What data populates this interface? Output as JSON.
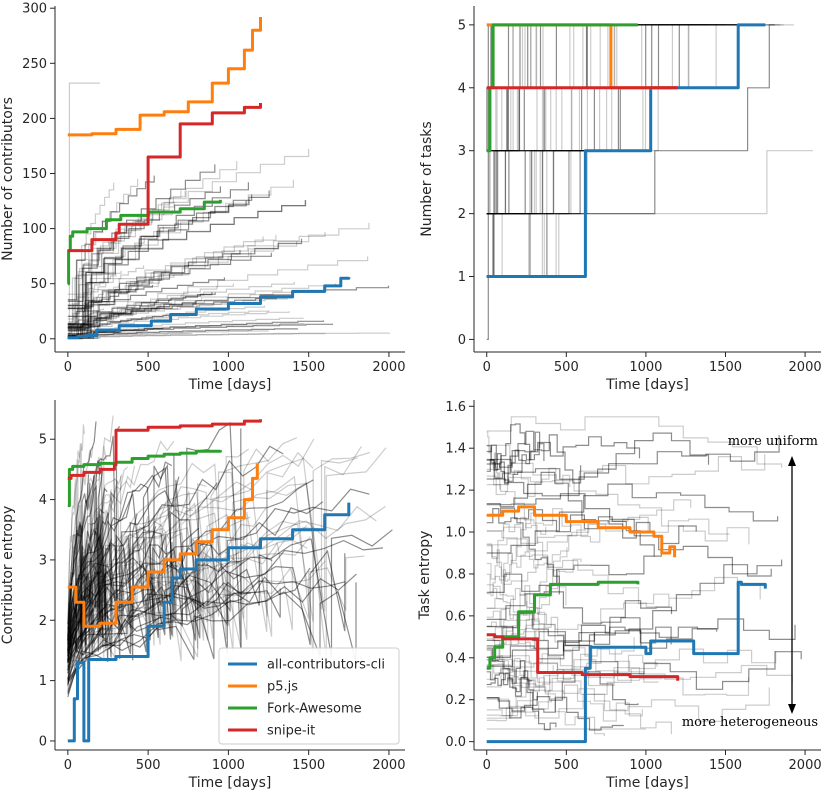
{
  "colors": {
    "all-contributors-cli": "#1f77b4",
    "p5.js": "#ff7f0e",
    "Fork-Awesome": "#2ca02c",
    "snipe-it": "#d62728",
    "background_lines": "#000000"
  },
  "legend": {
    "entries": [
      "all-contributors-cli",
      "p5.js",
      "Fork-Awesome",
      "snipe-it"
    ],
    "placement": "lower-right of contributor entropy panel"
  },
  "chart_data": [
    {
      "id": "contributors",
      "type": "line",
      "xlabel": "Time [days]",
      "ylabel": "Number of contributors",
      "xlim": [
        -80,
        2100
      ],
      "ylim": [
        -12,
        302
      ],
      "xticks": [
        0,
        500,
        1000,
        1500,
        2000
      ],
      "yticks": [
        0,
        50,
        100,
        150,
        200,
        250,
        300
      ],
      "grid": false,
      "series": [
        {
          "name": "all-contributors-cli",
          "x": [
            0,
            60,
            120,
            180,
            320,
            520,
            640,
            800,
            1000,
            1200,
            1400,
            1600,
            1700,
            1750
          ],
          "y": [
            1,
            2,
            3,
            8,
            12,
            16,
            22,
            27,
            32,
            38,
            43,
            48,
            55,
            56
          ]
        },
        {
          "name": "p5.js",
          "x": [
            0,
            150,
            300,
            450,
            600,
            750,
            900,
            1000,
            1100,
            1150,
            1200
          ],
          "y": [
            185,
            186,
            190,
            203,
            206,
            215,
            232,
            245,
            262,
            280,
            292
          ]
        },
        {
          "name": "Fork-Awesome",
          "x": [
            0,
            5,
            15,
            30,
            120,
            240,
            330,
            500,
            700,
            850,
            950
          ],
          "y": [
            50,
            80,
            93,
            97,
            100,
            108,
            112,
            115,
            118,
            124,
            126
          ]
        },
        {
          "name": "snipe-it",
          "x": [
            0,
            150,
            300,
            320,
            500,
            700,
            900,
            1100,
            1200
          ],
          "y": [
            80,
            90,
            96,
            104,
            165,
            195,
            205,
            210,
            214
          ]
        }
      ]
    },
    {
      "id": "tasks",
      "type": "line",
      "xlabel": "Time [days]",
      "ylabel": "Number of tasks",
      "xlim": [
        -80,
        2100
      ],
      "ylim": [
        -0.2,
        5.3
      ],
      "xticks": [
        0,
        500,
        1000,
        1500,
        2000
      ],
      "yticks": [
        0,
        1,
        2,
        3,
        4,
        5
      ],
      "grid": false,
      "series": [
        {
          "name": "all-contributors-cli",
          "x": [
            0,
            620,
            620,
            1030,
            1030,
            1580,
            1580,
            1750
          ],
          "y": [
            1,
            1,
            3,
            3,
            4,
            4,
            5,
            5
          ]
        },
        {
          "name": "p5.js",
          "x": [
            0,
            780,
            780,
            1200
          ],
          "y": [
            5,
            5,
            4,
            4
          ]
        },
        {
          "name": "Fork-Awesome",
          "x": [
            0,
            20,
            20,
            40,
            40,
            950
          ],
          "y": [
            3,
            3,
            4,
            4,
            5,
            5
          ]
        },
        {
          "name": "snipe-it",
          "x": [
            0,
            1200
          ],
          "y": [
            4,
            4
          ]
        }
      ]
    },
    {
      "id": "contributor-entropy",
      "type": "line",
      "xlabel": "Time [days]",
      "ylabel": "Contributor entropy",
      "xlim": [
        -80,
        2100
      ],
      "ylim": [
        -0.15,
        5.65
      ],
      "xticks": [
        0,
        500,
        1000,
        1500,
        2000
      ],
      "yticks": [
        0,
        1,
        2,
        3,
        4,
        5
      ],
      "grid": false,
      "series": [
        {
          "name": "all-contributors-cli",
          "x": [
            0,
            40,
            60,
            100,
            130,
            300,
            500,
            600,
            650,
            700,
            800,
            1000,
            1200,
            1400,
            1600,
            1750
          ],
          "y": [
            0,
            0.7,
            1.3,
            0,
            1.35,
            1.4,
            1.9,
            2.3,
            2.7,
            2.85,
            3.0,
            3.2,
            3.35,
            3.5,
            3.75,
            3.95
          ]
        },
        {
          "name": "p5.js",
          "x": [
            0,
            50,
            100,
            200,
            300,
            400,
            500,
            600,
            700,
            800,
            900,
            1000,
            1100,
            1150,
            1180
          ],
          "y": [
            2.55,
            2.3,
            1.9,
            1.95,
            2.3,
            2.55,
            2.8,
            3.0,
            3.1,
            3.3,
            3.5,
            3.7,
            4.0,
            4.35,
            4.6
          ]
        },
        {
          "name": "Fork-Awesome",
          "x": [
            0,
            10,
            30,
            100,
            200,
            300,
            400,
            500,
            600,
            700,
            800,
            950
          ],
          "y": [
            3.9,
            4.5,
            4.55,
            4.58,
            4.6,
            4.62,
            4.68,
            4.72,
            4.75,
            4.77,
            4.8,
            4.82
          ]
        },
        {
          "name": "snipe-it",
          "x": [
            0,
            20,
            100,
            200,
            290,
            300,
            500,
            700,
            900,
            1100,
            1200
          ],
          "y": [
            4.35,
            4.4,
            4.45,
            4.5,
            4.58,
            5.15,
            5.2,
            5.22,
            5.25,
            5.3,
            5.33
          ]
        }
      ]
    },
    {
      "id": "task-entropy",
      "type": "line",
      "xlabel": "Time [days]",
      "ylabel": "Task entropy",
      "xlim": [
        -80,
        2100
      ],
      "ylim": [
        -0.04,
        1.63
      ],
      "xticks": [
        0,
        500,
        1000,
        1500,
        2000
      ],
      "yticks": [
        0.0,
        0.2,
        0.4,
        0.6,
        0.8,
        1.0,
        1.2,
        1.4,
        1.6
      ],
      "ytick_labels": [
        "0.0",
        "0.2",
        "0.4",
        "0.6",
        "0.8",
        "1.0",
        "1.2",
        "1.4",
        "1.6"
      ],
      "grid": false,
      "annotations": {
        "top": "more uniform",
        "bottom": "more heterogeneous"
      },
      "series": [
        {
          "name": "all-contributors-cli",
          "x": [
            0,
            600,
            620,
            650,
            800,
            1000,
            1030,
            1300,
            1550,
            1580,
            1600,
            1750
          ],
          "y": [
            0,
            0,
            0.35,
            0.45,
            0.45,
            0.42,
            0.48,
            0.42,
            0.42,
            0.76,
            0.75,
            0.73
          ]
        },
        {
          "name": "p5.js",
          "x": [
            0,
            100,
            200,
            300,
            500,
            700,
            900,
            1000,
            1050,
            1100,
            1150,
            1180
          ],
          "y": [
            1.08,
            1.1,
            1.12,
            1.08,
            1.05,
            1.02,
            1.0,
            1.0,
            0.98,
            0.9,
            0.93,
            0.88
          ]
        },
        {
          "name": "Fork-Awesome",
          "x": [
            0,
            20,
            50,
            100,
            200,
            300,
            400,
            700,
            950
          ],
          "y": [
            0.35,
            0.4,
            0.45,
            0.5,
            0.62,
            0.7,
            0.75,
            0.76,
            0.75
          ]
        },
        {
          "name": "snipe-it",
          "x": [
            0,
            50,
            100,
            200,
            300,
            320,
            600,
            900,
            1200
          ],
          "y": [
            0.51,
            0.5,
            0.49,
            0.49,
            0.49,
            0.33,
            0.32,
            0.31,
            0.29
          ]
        }
      ]
    }
  ]
}
